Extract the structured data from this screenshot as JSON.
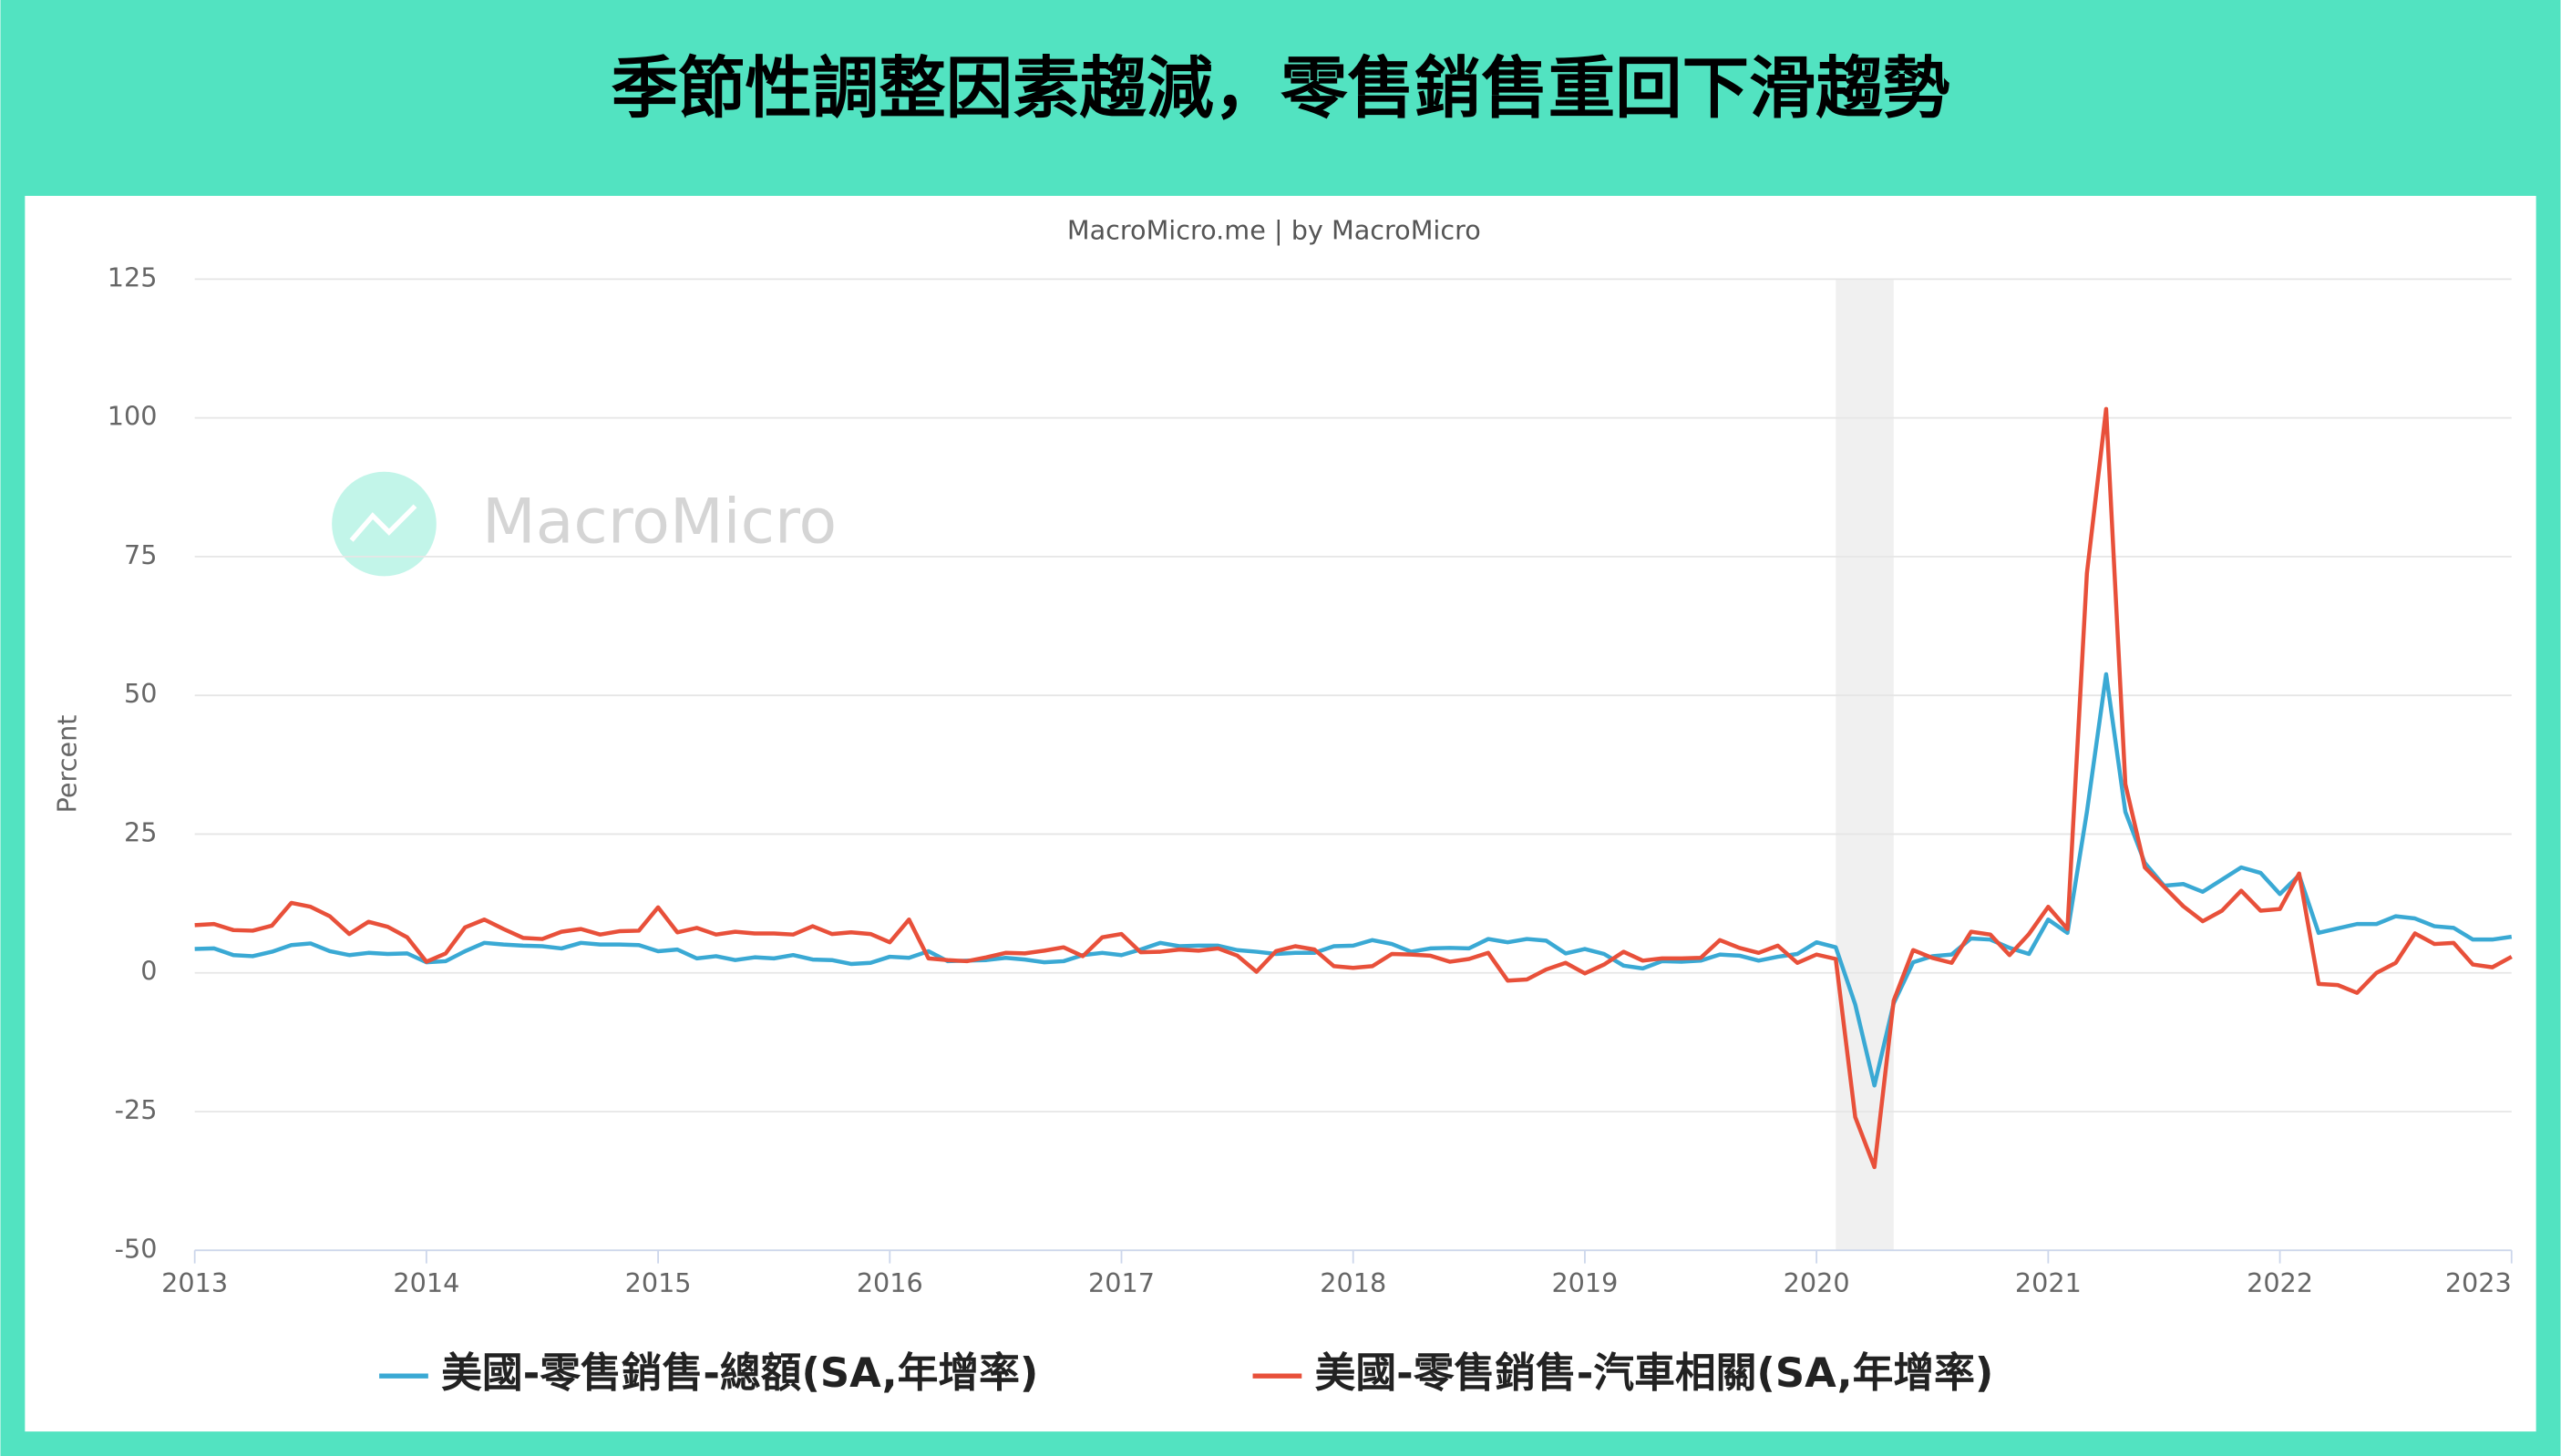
{
  "chart_data": {
    "type": "line",
    "title": "季節性調整因素趨減，零售銷售重回下滑趨勢",
    "credit": "MacroMicro.me | by MacroMicro",
    "watermark": "MacroMicro",
    "y_label": "Percent",
    "xlim": [
      2013,
      2023
    ],
    "xticks": [
      2013,
      2014,
      2015,
      2016,
      2017,
      2018,
      2019,
      2020,
      2021,
      2022,
      2023
    ],
    "ylim": [
      -50,
      125
    ],
    "yticks": [
      -50,
      -25,
      0,
      25,
      50,
      75,
      100,
      125
    ],
    "grid": true,
    "recession_band": [
      2020.083,
      2020.333
    ],
    "x": [
      2013,
      2013.083,
      2013.167,
      2013.25,
      2013.333,
      2013.417,
      2013.5,
      2013.583,
      2013.667,
      2013.75,
      2013.833,
      2013.917,
      2014,
      2014.083,
      2014.167,
      2014.25,
      2014.333,
      2014.417,
      2014.5,
      2014.583,
      2014.667,
      2014.75,
      2014.833,
      2014.917,
      2015,
      2015.083,
      2015.167,
      2015.25,
      2015.333,
      2015.417,
      2015.5,
      2015.583,
      2015.667,
      2015.75,
      2015.833,
      2015.917,
      2016,
      2016.083,
      2016.167,
      2016.25,
      2016.333,
      2016.417,
      2016.5,
      2016.583,
      2016.667,
      2016.75,
      2016.833,
      2016.917,
      2017,
      2017.083,
      2017.167,
      2017.25,
      2017.333,
      2017.417,
      2017.5,
      2017.583,
      2017.667,
      2017.75,
      2017.833,
      2017.917,
      2018,
      2018.083,
      2018.167,
      2018.25,
      2018.333,
      2018.417,
      2018.5,
      2018.583,
      2018.667,
      2018.75,
      2018.833,
      2018.917,
      2019,
      2019.083,
      2019.167,
      2019.25,
      2019.333,
      2019.417,
      2019.5,
      2019.583,
      2019.667,
      2019.75,
      2019.833,
      2019.917,
      2020,
      2020.083,
      2020.167,
      2020.25,
      2020.333,
      2020.417,
      2020.5,
      2020.583,
      2020.667,
      2020.75,
      2020.833,
      2020.917,
      2021,
      2021.083,
      2021.167,
      2021.25,
      2021.333,
      2021.417,
      2021.5,
      2021.583,
      2021.667,
      2021.75,
      2021.833,
      2021.917,
      2022,
      2022.083,
      2022.167,
      2022.25,
      2022.333,
      2022.417,
      2022.5,
      2022.583,
      2022.667,
      2022.75,
      2022.833,
      2022.917,
      2023
    ],
    "series": [
      {
        "name": "美國-零售銷售-總額(SA,年增率)",
        "color": "#3aa9d4",
        "values": [
          4.3,
          4.4,
          3.2,
          3.0,
          3.8,
          5.0,
          5.3,
          3.9,
          3.2,
          3.6,
          3.4,
          3.5,
          1.9,
          2.1,
          3.9,
          5.4,
          5.1,
          4.9,
          4.8,
          4.4,
          5.4,
          5.1,
          5.1,
          5.0,
          3.9,
          4.2,
          2.6,
          3.0,
          2.3,
          2.8,
          2.6,
          3.2,
          2.4,
          2.3,
          1.6,
          1.8,
          2.9,
          2.7,
          3.9,
          2.1,
          2.2,
          2.3,
          2.7,
          2.4,
          1.9,
          2.1,
          3.2,
          3.6,
          3.2,
          4.2,
          5.4,
          4.8,
          4.9,
          4.9,
          4.1,
          3.8,
          3.4,
          3.6,
          3.6,
          4.8,
          4.9,
          5.9,
          5.2,
          3.8,
          4.4,
          4.5,
          4.4,
          6.1,
          5.5,
          6.1,
          5.8,
          3.5,
          4.3,
          3.4,
          1.3,
          0.8,
          2.1,
          2.0,
          2.2,
          3.3,
          3.1,
          2.2,
          2.9,
          3.4,
          5.5,
          4.6,
          -5.7,
          -20.3,
          -5.5,
          1.9,
          3.0,
          3.3,
          6.2,
          6.0,
          4.5,
          3.4,
          9.6,
          7.2,
          29,
          53.8,
          29,
          19.8,
          15.7,
          16.0,
          14.6,
          16.8,
          19.0,
          18.0,
          14.2,
          17.6,
          7.2,
          8.0,
          8.8,
          8.8,
          10.2,
          9.8,
          8.4,
          8.1,
          6.0,
          6.0,
          6.5
        ]
      },
      {
        "name": "美國-零售銷售-汽車相關(SA,年增率)",
        "color": "#e8503a",
        "values": [
          8.6,
          8.8,
          7.7,
          7.6,
          8.5,
          12.6,
          11.9,
          10.2,
          7.0,
          9.2,
          8.3,
          6.4,
          2.0,
          3.5,
          8.2,
          9.6,
          7.9,
          6.3,
          6.1,
          7.4,
          7.9,
          6.9,
          7.5,
          7.6,
          11.8,
          7.3,
          8.1,
          6.9,
          7.4,
          7.1,
          7.1,
          6.9,
          8.4,
          7.0,
          7.3,
          7.0,
          5.5,
          9.6,
          2.6,
          2.3,
          2.1,
          2.8,
          3.6,
          3.5,
          4.0,
          4.6,
          3.0,
          6.4,
          7.0,
          3.7,
          3.8,
          4.2,
          4.0,
          4.4,
          3.1,
          0.2,
          3.9,
          4.8,
          4.2,
          1.2,
          0.9,
          1.2,
          3.4,
          3.3,
          3.1,
          2.0,
          2.5,
          3.6,
          -1.4,
          -1.2,
          0.6,
          1.8,
          -0.1,
          1.5,
          3.8,
          2.2,
          2.6,
          2.6,
          2.7,
          5.9,
          4.5,
          3.6,
          4.9,
          1.8,
          3.3,
          2.5,
          -26,
          -35,
          -5,
          4.1,
          2.7,
          1.8,
          7.4,
          6.9,
          3.2,
          7.0,
          11.9,
          7.9,
          72,
          101.6,
          34,
          19,
          15.5,
          12,
          9.3,
          11.2,
          14.8,
          11.2,
          11.5,
          17.9,
          -2,
          -2.2,
          -3.6,
          0,
          1.8,
          7.1,
          5.2,
          5.4,
          1.5,
          1.0,
          2.9
        ]
      }
    ]
  }
}
